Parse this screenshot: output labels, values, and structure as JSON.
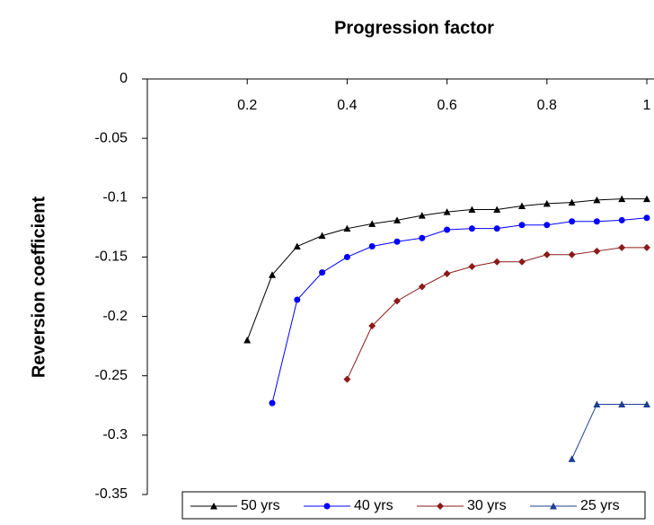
{
  "chart_data": {
    "type": "line",
    "title": "Progression factor",
    "y_label": "Reversion coefficient",
    "xlim": [
      0,
      1
    ],
    "xticks": [
      0.2,
      0.4,
      0.6,
      0.8,
      1
    ],
    "ylim": [
      -0.35,
      0
    ],
    "yticks": [
      0,
      -0.05,
      -0.1,
      -0.15,
      -0.2,
      -0.25,
      -0.3,
      -0.35
    ],
    "legend": "bottom",
    "series": [
      {
        "name": "50 yrs",
        "color": "#000000",
        "marker": "triangle",
        "x": [
          0.2,
          0.25,
          0.3,
          0.35,
          0.4,
          0.45,
          0.5,
          0.55,
          0.6,
          0.65,
          0.7,
          0.75,
          0.8,
          0.85,
          0.9,
          0.95,
          1.0
        ],
        "values": [
          -0.22,
          -0.165,
          -0.141,
          -0.132,
          -0.126,
          -0.122,
          -0.119,
          -0.115,
          -0.112,
          -0.11,
          -0.11,
          -0.107,
          -0.105,
          -0.104,
          -0.102,
          -0.101,
          -0.101
        ]
      },
      {
        "name": "40 yrs",
        "color": "#0000ff",
        "marker": "circle",
        "x": [
          0.25,
          0.3,
          0.35,
          0.4,
          0.45,
          0.5,
          0.55,
          0.6,
          0.65,
          0.7,
          0.75,
          0.8,
          0.85,
          0.9,
          0.95,
          1.0
        ],
        "values": [
          -0.273,
          -0.186,
          -0.163,
          -0.15,
          -0.141,
          -0.137,
          -0.134,
          -0.127,
          -0.126,
          -0.126,
          -0.123,
          -0.123,
          -0.12,
          -0.12,
          -0.119,
          -0.117
        ]
      },
      {
        "name": "30 yrs",
        "color": "#8b1a1a",
        "marker": "diamond",
        "x": [
          0.4,
          0.45,
          0.5,
          0.55,
          0.6,
          0.65,
          0.7,
          0.75,
          0.8,
          0.85,
          0.9,
          0.95,
          1.0
        ],
        "values": [
          -0.253,
          -0.208,
          -0.187,
          -0.175,
          -0.164,
          -0.158,
          -0.154,
          -0.154,
          -0.148,
          -0.148,
          -0.145,
          -0.142,
          -0.142
        ]
      },
      {
        "name": "25 yrs",
        "color": "#1f3f8f",
        "marker": "triangle",
        "x": [
          0.85,
          0.9,
          0.95,
          1.0
        ],
        "values": [
          -0.32,
          -0.274,
          -0.274,
          -0.274
        ]
      }
    ]
  }
}
